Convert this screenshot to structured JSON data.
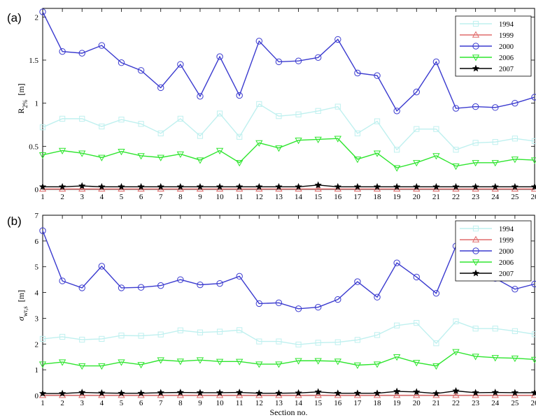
{
  "chart_data": [
    {
      "type": "line",
      "panel": "(a)",
      "ylabel_base": "R",
      "ylabel_sub": "2%",
      "ylabel_unit": "[m]",
      "xlabel": "",
      "x": [
        1,
        2,
        3,
        4,
        5,
        6,
        7,
        8,
        9,
        10,
        11,
        12,
        13,
        14,
        15,
        16,
        17,
        18,
        19,
        20,
        21,
        22,
        23,
        24,
        25,
        26
      ],
      "xlim": [
        1,
        26
      ],
      "ylim": [
        0,
        2.1
      ],
      "yticks": [
        0,
        0.5,
        1,
        1.5,
        2
      ],
      "ytick_labels": [
        "0",
        "0.5",
        "1",
        "1.5",
        "2"
      ],
      "grid": false,
      "legend_position": "top-right",
      "series": [
        {
          "name": "1994",
          "color": "#bff0ef",
          "marker": "square",
          "values": [
            0.72,
            0.82,
            0.82,
            0.73,
            0.81,
            0.76,
            0.65,
            0.82,
            0.62,
            0.88,
            0.61,
            0.99,
            0.85,
            0.87,
            0.91,
            0.96,
            0.65,
            0.79,
            0.46,
            0.7,
            0.7,
            0.46,
            0.54,
            0.55,
            0.59,
            0.56
          ]
        },
        {
          "name": "1999",
          "color": "#e06b6b",
          "marker": "triangle-up",
          "values": [
            0.005,
            0.005,
            0.005,
            0.005,
            0.005,
            0.005,
            0.005,
            0.005,
            0.005,
            0.005,
            0.005,
            0.005,
            0.005,
            0.005,
            0.005,
            0.005,
            0.005,
            0.005,
            0.005,
            0.005,
            0.005,
            0.005,
            0.005,
            0.005,
            0.005,
            0.005
          ]
        },
        {
          "name": "2000",
          "color": "#3a3acf",
          "marker": "circle",
          "values": [
            2.06,
            1.6,
            1.58,
            1.67,
            1.47,
            1.38,
            1.18,
            1.45,
            1.08,
            1.54,
            1.09,
            1.72,
            1.48,
            1.49,
            1.53,
            1.74,
            1.35,
            1.32,
            0.91,
            1.13,
            1.48,
            0.94,
            0.96,
            0.95,
            1.0,
            1.07
          ]
        },
        {
          "name": "2006",
          "color": "#2ee52e",
          "marker": "triangle-down",
          "values": [
            0.4,
            0.45,
            0.42,
            0.37,
            0.44,
            0.39,
            0.37,
            0.41,
            0.34,
            0.45,
            0.31,
            0.54,
            0.48,
            0.57,
            0.58,
            0.59,
            0.35,
            0.42,
            0.25,
            0.31,
            0.39,
            0.27,
            0.31,
            0.31,
            0.35,
            0.34
          ]
        },
        {
          "name": "2007",
          "color": "#000000",
          "marker": "star",
          "values": [
            0.03,
            0.03,
            0.04,
            0.03,
            0.03,
            0.03,
            0.03,
            0.03,
            0.03,
            0.03,
            0.03,
            0.03,
            0.03,
            0.03,
            0.05,
            0.03,
            0.03,
            0.03,
            0.03,
            0.03,
            0.03,
            0.03,
            0.03,
            0.03,
            0.03,
            0.03
          ]
        }
      ]
    },
    {
      "type": "line",
      "panel": "(b)",
      "ylabel_base": "σ",
      "ylabel_sub": "wr,s",
      "ylabel_unit": "[m]",
      "xlabel": "Section no.",
      "x": [
        1,
        2,
        3,
        4,
        5,
        6,
        7,
        8,
        9,
        10,
        11,
        12,
        13,
        14,
        15,
        16,
        17,
        18,
        19,
        20,
        21,
        22,
        23,
        24,
        25,
        26
      ],
      "xlim": [
        1,
        26
      ],
      "ylim": [
        0,
        7
      ],
      "yticks": [
        0,
        1,
        2,
        3,
        4,
        5,
        6,
        7
      ],
      "ytick_labels": [
        "0",
        "1",
        "2",
        "3",
        "4",
        "5",
        "6",
        "7"
      ],
      "grid": false,
      "legend_position": "top-right",
      "series": [
        {
          "name": "1994",
          "color": "#bff0ef",
          "marker": "square",
          "values": [
            2.2,
            2.28,
            2.17,
            2.2,
            2.33,
            2.32,
            2.37,
            2.53,
            2.45,
            2.48,
            2.54,
            2.1,
            2.1,
            1.98,
            2.05,
            2.07,
            2.16,
            2.35,
            2.72,
            2.82,
            2.03,
            2.88,
            2.6,
            2.6,
            2.5,
            2.38
          ]
        },
        {
          "name": "1999",
          "color": "#e06b6b",
          "marker": "triangle-up",
          "values": [
            0.01,
            0.01,
            0.01,
            0.01,
            0.01,
            0.01,
            0.01,
            0.01,
            0.01,
            0.01,
            0.01,
            0.01,
            0.01,
            0.01,
            0.01,
            0.01,
            0.01,
            0.01,
            0.01,
            0.01,
            0.01,
            0.01,
            0.01,
            0.01,
            0.01,
            0.01
          ]
        },
        {
          "name": "2000",
          "color": "#3a3acf",
          "marker": "circle",
          "values": [
            6.4,
            4.45,
            4.18,
            5.02,
            4.18,
            4.2,
            4.27,
            4.5,
            4.3,
            4.35,
            4.63,
            3.57,
            3.6,
            3.37,
            3.43,
            3.73,
            4.42,
            3.82,
            5.15,
            4.6,
            3.97,
            5.8,
            4.68,
            4.55,
            4.13,
            4.33
          ]
        },
        {
          "name": "2006",
          "color": "#2ee52e",
          "marker": "triangle-down",
          "values": [
            1.22,
            1.3,
            1.15,
            1.15,
            1.3,
            1.2,
            1.38,
            1.33,
            1.38,
            1.32,
            1.32,
            1.22,
            1.22,
            1.35,
            1.35,
            1.33,
            1.18,
            1.22,
            1.5,
            1.28,
            1.15,
            1.7,
            1.52,
            1.47,
            1.45,
            1.4
          ]
        },
        {
          "name": "2007",
          "color": "#000000",
          "marker": "star",
          "values": [
            0.08,
            0.08,
            0.12,
            0.1,
            0.09,
            0.09,
            0.11,
            0.12,
            0.11,
            0.11,
            0.12,
            0.09,
            0.09,
            0.1,
            0.14,
            0.09,
            0.09,
            0.09,
            0.16,
            0.14,
            0.08,
            0.18,
            0.11,
            0.12,
            0.11,
            0.11
          ]
        }
      ]
    }
  ]
}
